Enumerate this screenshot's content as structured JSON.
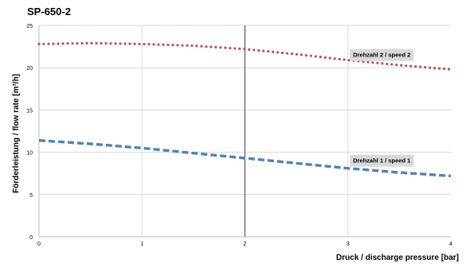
{
  "chart_data": {
    "type": "line",
    "title": "SP-650-2",
    "xlabel": "Druck / discharge pressure [bar]",
    "ylabel": "Förderleistung / flow rate  [m³/h]",
    "xlim": [
      0,
      4
    ],
    "ylim": [
      0,
      25
    ],
    "x_ticks": [
      0,
      1,
      2,
      3,
      4
    ],
    "y_ticks": [
      0,
      5,
      10,
      15,
      20,
      25
    ],
    "grid": true,
    "series": [
      {
        "name": "Drehzahl 2 / speed 2",
        "style": "dotted",
        "color": "#c0504d",
        "x": [
          0,
          0.5,
          1.0,
          1.5,
          2.0,
          2.5,
          3.0,
          3.5,
          4.0
        ],
        "y": [
          22.8,
          22.9,
          22.8,
          22.6,
          22.2,
          21.6,
          20.9,
          20.3,
          19.8
        ]
      },
      {
        "name": "Drehzahl 1 / speed 1",
        "style": "dashed",
        "color": "#4f81bd",
        "x": [
          0,
          0.5,
          1.0,
          1.5,
          2.0,
          2.5,
          3.0,
          3.5,
          4.0
        ],
        "y": [
          11.4,
          11.0,
          10.5,
          9.9,
          9.3,
          8.7,
          8.1,
          7.6,
          7.2
        ]
      }
    ]
  }
}
